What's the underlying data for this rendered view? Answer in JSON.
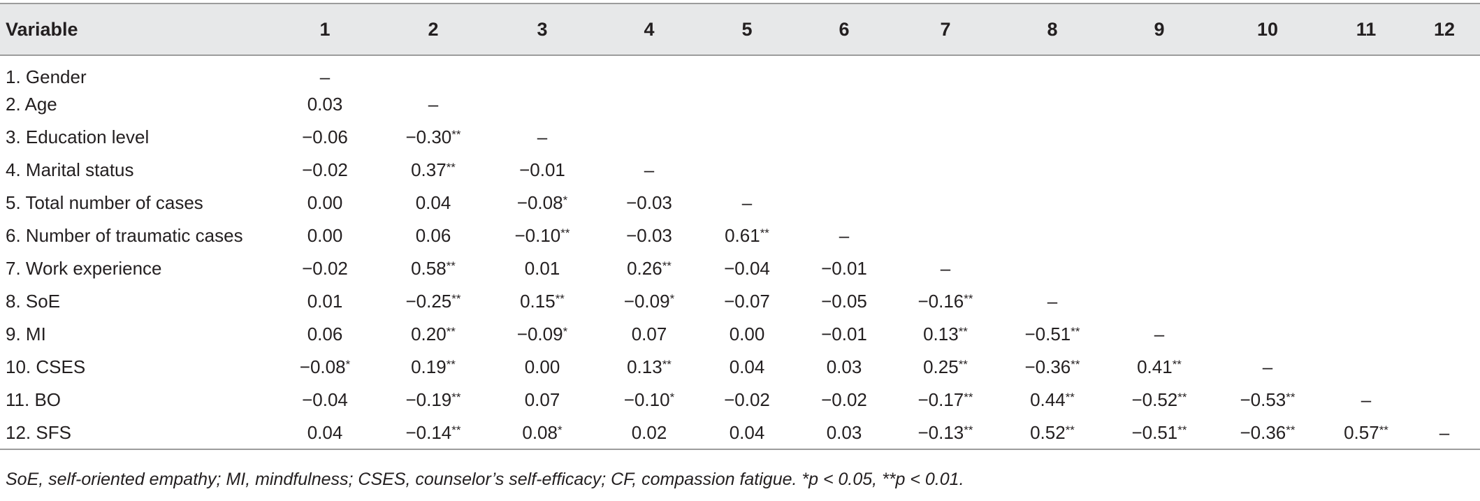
{
  "table": {
    "headers": [
      "Variable",
      "1",
      "2",
      "3",
      "4",
      "5",
      "6",
      "7",
      "8",
      "9",
      "10",
      "11",
      "12"
    ],
    "rows": [
      [
        "1. Gender",
        "–",
        "",
        "",
        "",
        "",
        "",
        "",
        "",
        "",
        "",
        "",
        ""
      ],
      [
        "2. Age",
        "0.03",
        "–",
        "",
        "",
        "",
        "",
        "",
        "",
        "",
        "",
        "",
        ""
      ],
      [
        "3. Education level",
        "−0.06",
        "−0.30**",
        "–",
        "",
        "",
        "",
        "",
        "",
        "",
        "",
        "",
        ""
      ],
      [
        "4. Marital status",
        "−0.02",
        "0.37**",
        "−0.01",
        "–",
        "",
        "",
        "",
        "",
        "",
        "",
        "",
        ""
      ],
      [
        "5. Total number of cases",
        "0.00",
        "0.04",
        "−0.08*",
        "−0.03",
        "–",
        "",
        "",
        "",
        "",
        "",
        "",
        ""
      ],
      [
        "6. Number of traumatic cases",
        "0.00",
        "0.06",
        "−0.10**",
        "−0.03",
        "0.61**",
        "–",
        "",
        "",
        "",
        "",
        "",
        ""
      ],
      [
        "7. Work experience",
        "−0.02",
        "0.58**",
        "0.01",
        "0.26**",
        "−0.04",
        "−0.01",
        "–",
        "",
        "",
        "",
        "",
        ""
      ],
      [
        "8. SoE",
        "0.01",
        "−0.25**",
        "0.15**",
        "−0.09*",
        "−0.07",
        "−0.05",
        "−0.16**",
        "–",
        "",
        "",
        "",
        ""
      ],
      [
        "9. MI",
        "0.06",
        "0.20**",
        "−0.09*",
        "0.07",
        "0.00",
        "−0.01",
        "0.13**",
        "−0.51**",
        "–",
        "",
        "",
        ""
      ],
      [
        "10. CSES",
        "−0.08*",
        "0.19**",
        "0.00",
        "0.13**",
        "0.04",
        "0.03",
        "0.25**",
        "−0.36**",
        "0.41**",
        "–",
        "",
        ""
      ],
      [
        "11. BO",
        "−0.04",
        "−0.19**",
        "0.07",
        "−0.10*",
        "−0.02",
        "−0.02",
        "−0.17**",
        "0.44**",
        "−0.52**",
        "−0.53**",
        "–",
        ""
      ],
      [
        "12. SFS",
        "0.04",
        "−0.14**",
        "0.08*",
        "0.02",
        "0.04",
        "0.03",
        "−0.13**",
        "0.52**",
        "−0.51**",
        "−0.36**",
        "0.57**",
        "–"
      ]
    ],
    "footnote": "SoE, self-oriented empathy; MI, mindfulness; CSES, counselor’s self-efficacy; CF, compassion fatigue. *p < 0.05, **p < 0.01."
  }
}
